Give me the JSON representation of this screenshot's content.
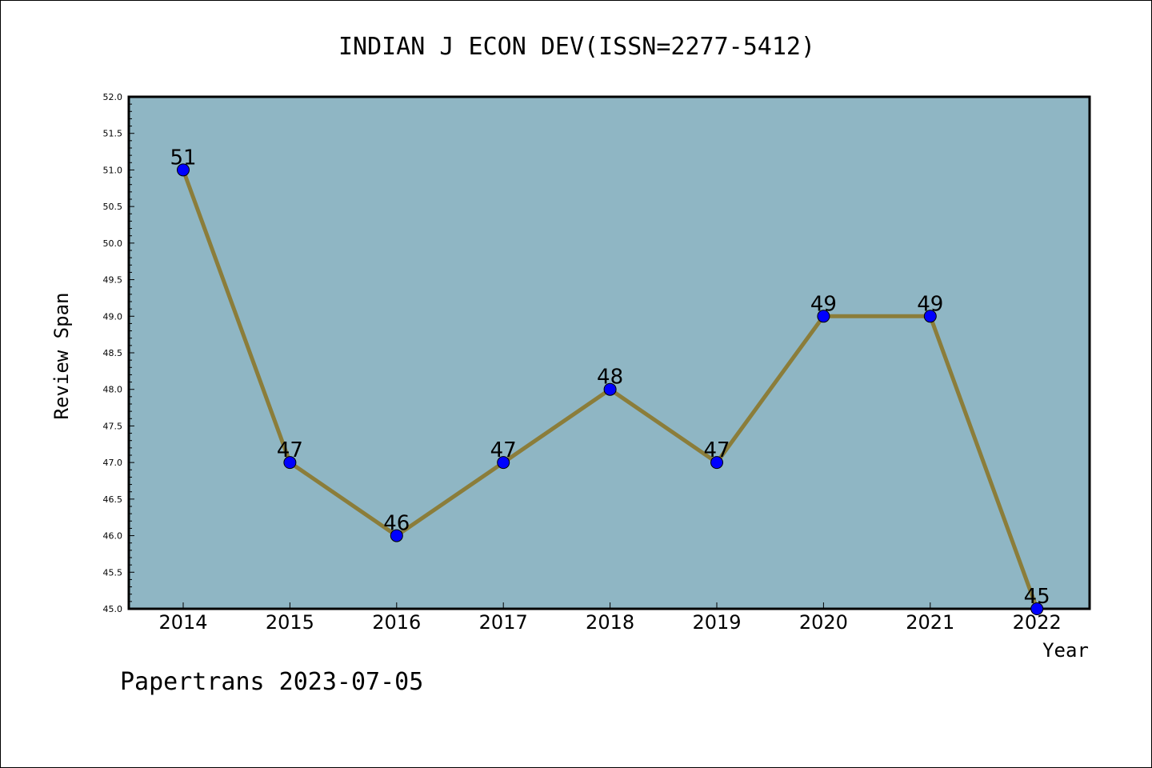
{
  "chart_data": {
    "type": "line",
    "title": "INDIAN J ECON DEV(ISSN=2277-5412)",
    "xlabel": "Year",
    "ylabel": "Review Span",
    "categories": [
      "2014",
      "2015",
      "2016",
      "2017",
      "2018",
      "2019",
      "2020",
      "2021",
      "2022"
    ],
    "series": [
      {
        "values": [
          51,
          47,
          46,
          47,
          48,
          47,
          49,
          49,
          45
        ]
      }
    ],
    "data_labels": [
      "51",
      "47",
      "46",
      "47",
      "48",
      "47",
      "49",
      "49",
      "45"
    ],
    "ylim": [
      45.0,
      52.0
    ],
    "yticks": [
      "45.0",
      "45.5",
      "46.0",
      "46.5",
      "47.0",
      "47.5",
      "48.0",
      "48.5",
      "49.0",
      "49.5",
      "50.0",
      "50.5",
      "51.0",
      "51.5",
      "52.0"
    ],
    "grid": false,
    "colors": {
      "plot_background": "#8fb6c4",
      "line": "#8b7d3a",
      "marker": "#0000ff"
    }
  },
  "footer": {
    "text": "Papertrans 2023-07-05"
  }
}
